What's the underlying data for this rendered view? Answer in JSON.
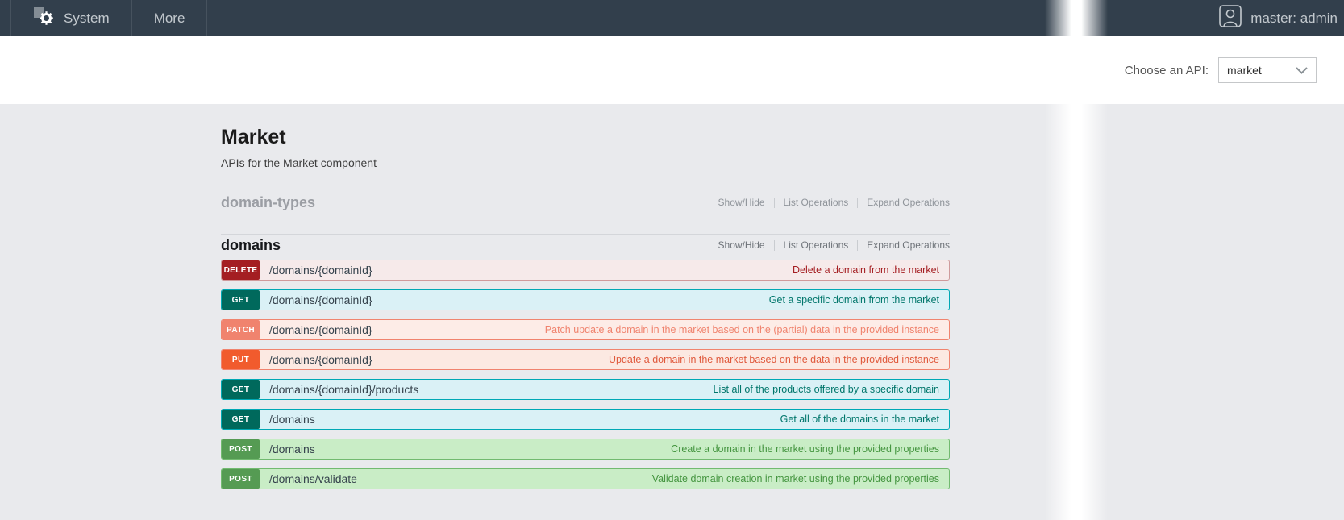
{
  "navbar": {
    "items": [
      {
        "label": "System",
        "icon": "gear-icon"
      },
      {
        "label": "More"
      }
    ],
    "user": "master: admin",
    "user_icon": "person-icon"
  },
  "api_chooser": {
    "label": "Choose an API:",
    "selected": "market",
    "chevron_icon": "chevron-down-icon"
  },
  "page": {
    "title": "Market",
    "subtitle": "APIs for the Market component"
  },
  "sections": [
    {
      "name": "domain-types",
      "muted": true,
      "links": [
        "Show/Hide",
        "List Operations",
        "Expand Operations"
      ],
      "endpoints": []
    },
    {
      "name": "domains",
      "muted": false,
      "links": [
        "Show/Hide",
        "List Operations",
        "Expand Operations"
      ],
      "endpoints": [
        {
          "method": "DELETE",
          "path": "/domains/{domainId}",
          "description": "Delete a domain from the market"
        },
        {
          "method": "GET",
          "path": "/domains/{domainId}",
          "description": "Get a specific domain from the market"
        },
        {
          "method": "PATCH",
          "path": "/domains/{domainId}",
          "description": "Patch update a domain in the market based on the (partial) data in the provided instance"
        },
        {
          "method": "PUT",
          "path": "/domains/{domainId}",
          "description": "Update a domain in the market based on the data in the provided instance"
        },
        {
          "method": "GET",
          "path": "/domains/{domainId}/products",
          "description": "List all of the products offered by a specific domain"
        },
        {
          "method": "GET",
          "path": "/domains",
          "description": "Get all of the domains in the market"
        },
        {
          "method": "POST",
          "path": "/domains",
          "description": "Create a domain in the market using the provided properties"
        },
        {
          "method": "POST",
          "path": "/domains/validate",
          "description": "Validate domain creation in market using the provided properties"
        }
      ]
    }
  ],
  "method_styles": {
    "DELETE": {
      "badge": "#a41e22",
      "bg": "#f6eaea",
      "border": "#cf9a9b",
      "text": "#a41e22"
    },
    "GET": {
      "badge": "#00695c",
      "bg": "#daf1f6",
      "border": "#00a8b4",
      "text": "#00766b"
    },
    "PATCH": {
      "badge": "#f0836e",
      "bg": "#fdece7",
      "border": "#f0836e",
      "text": "#f0836e"
    },
    "PUT": {
      "badge": "#f15b2d",
      "bg": "#fce9e2",
      "border": "#f0836e",
      "text": "#e05a3d"
    },
    "POST": {
      "badge": "#559b53",
      "bg": "#c9edc6",
      "border": "#72ba70",
      "text": "#459540"
    }
  },
  "colors": {
    "navbar_bg": "#323f4c",
    "navbar_text": "#c3c9ce",
    "content_bg": "#e9eaed",
    "section_divider": "#d4d6da"
  }
}
